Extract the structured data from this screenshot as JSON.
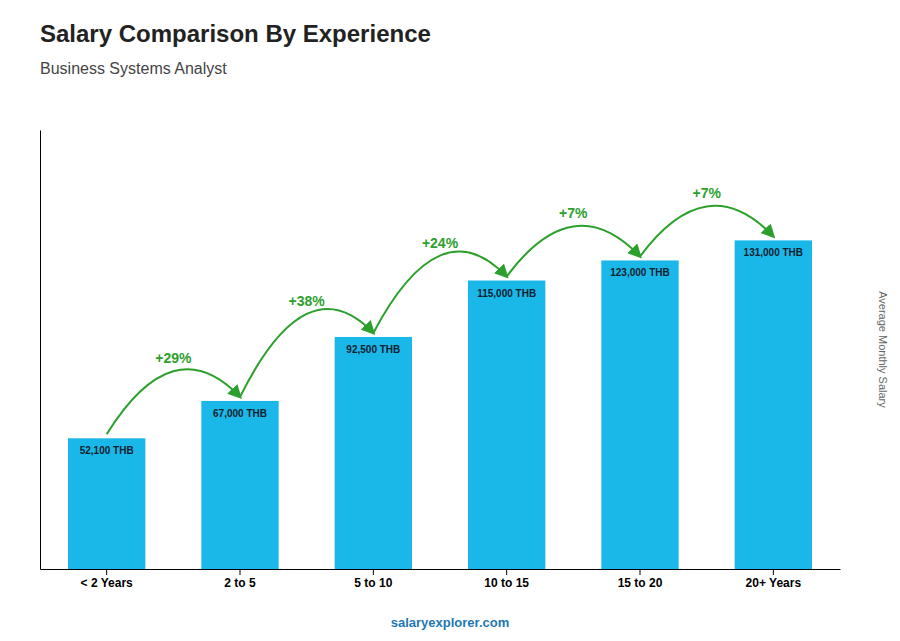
{
  "chart_data": {
    "type": "bar",
    "title": "Salary Comparison By Experience",
    "subtitle": "Business Systems Analyst",
    "ylabel": "Average Monthly Salary",
    "categories": [
      "< 2 Years",
      "2 to 5",
      "5 to 10",
      "10 to 15",
      "15 to 20",
      "20+ Years"
    ],
    "values": [
      52100,
      67000,
      92500,
      115000,
      123000,
      131000
    ],
    "value_labels": [
      "52,100 THB",
      "67,000 THB",
      "92,500 THB",
      "115,000 THB",
      "123,000 THB",
      "131,000 THB"
    ],
    "data_labels": true,
    "annotations": [
      "+29%",
      "+38%",
      "+24%",
      "+7%",
      "+7%"
    ],
    "watermark": "salaryexplorer.com",
    "color": "#1ab8e8",
    "ylim": [
      0,
      175000
    ],
    "tick_labels": "x",
    "grid": false
  }
}
